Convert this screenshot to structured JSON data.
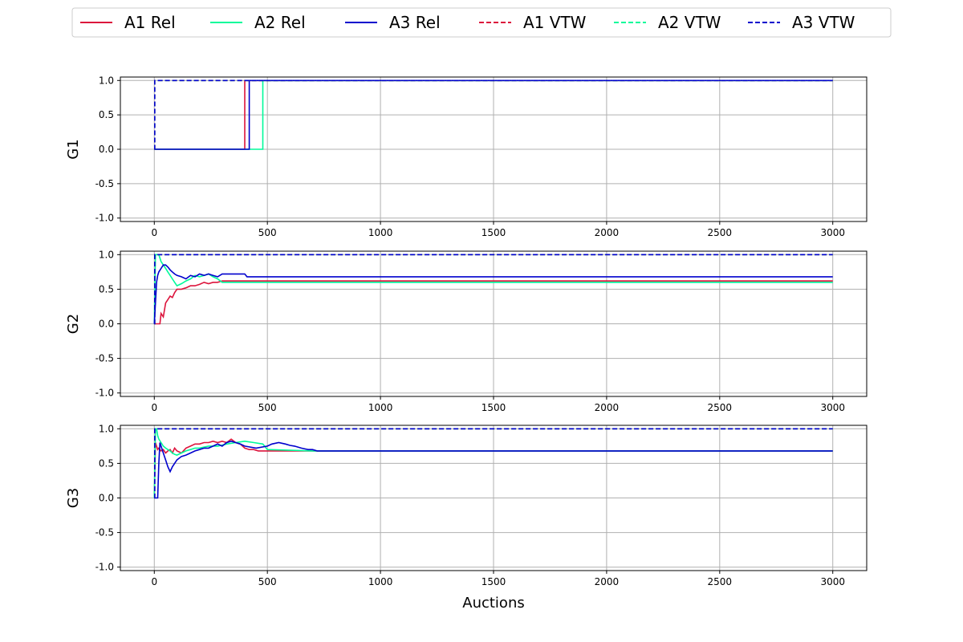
{
  "chart_data": {
    "type": "line",
    "xlabel": "Auctions",
    "xlim": [
      -150,
      3150
    ],
    "ylim": [
      -1.05,
      1.05
    ],
    "xticks": [
      0,
      500,
      1000,
      1500,
      2000,
      2500,
      3000
    ],
    "yticks": [
      -1.0,
      -0.5,
      0.0,
      0.5,
      1.0
    ],
    "xtick_labels": [
      "0",
      "500",
      "1000",
      "1500",
      "2000",
      "2500",
      "3000"
    ],
    "ytick_labels": [
      "-1.0",
      "-0.5",
      "0.0",
      "0.5",
      "1.0"
    ],
    "grid": true,
    "legend_placement": "top-center",
    "legend": [
      {
        "name": "A1 Rel",
        "color": "#dc143c",
        "dash": "solid"
      },
      {
        "name": "A2 Rel",
        "color": "#00fa9a",
        "dash": "solid"
      },
      {
        "name": "A3 Rel",
        "color": "#0000cd",
        "dash": "solid"
      },
      {
        "name": "A1 VTW",
        "color": "#dc143c",
        "dash": "dashed"
      },
      {
        "name": "A2 VTW",
        "color": "#00fa9a",
        "dash": "dashed"
      },
      {
        "name": "A3 VTW",
        "color": "#0000cd",
        "dash": "dashed"
      }
    ],
    "panels": [
      {
        "ylabel": "G1",
        "series": [
          {
            "name": "A1 Rel",
            "color": "#dc143c",
            "dash": "solid",
            "x": [
              0,
              400,
              400,
              3000
            ],
            "y": [
              0,
              0,
              1,
              1
            ]
          },
          {
            "name": "A2 Rel",
            "color": "#00fa9a",
            "dash": "solid",
            "x": [
              0,
              480,
              480,
              3000
            ],
            "y": [
              0,
              0,
              1,
              1
            ]
          },
          {
            "name": "A3 Rel",
            "color": "#0000cd",
            "dash": "solid",
            "x": [
              0,
              420,
              420,
              3000
            ],
            "y": [
              0,
              0,
              1,
              1
            ]
          },
          {
            "name": "A1 VTW",
            "color": "#dc143c",
            "dash": "dashed",
            "x": [
              0,
              2,
              2,
              3000
            ],
            "y": [
              0,
              0,
              1,
              1
            ]
          },
          {
            "name": "A2 VTW",
            "color": "#00fa9a",
            "dash": "dashed",
            "x": [
              0,
              2,
              2,
              3000
            ],
            "y": [
              0,
              0,
              1,
              1
            ]
          },
          {
            "name": "A3 VTW",
            "color": "#0000cd",
            "dash": "dashed",
            "x": [
              0,
              2,
              2,
              3000
            ],
            "y": [
              0,
              0,
              1,
              1
            ]
          }
        ]
      },
      {
        "ylabel": "G2",
        "series": [
          {
            "name": "A1 Rel",
            "color": "#dc143c",
            "dash": "solid",
            "x": [
              0,
              10,
              25,
              30,
              40,
              50,
              60,
              70,
              80,
              90,
              100,
              120,
              140,
              160,
              180,
              200,
              220,
              240,
              260,
              280,
              300,
              3000
            ],
            "y": [
              0,
              0,
              0,
              0.15,
              0.1,
              0.3,
              0.35,
              0.4,
              0.38,
              0.45,
              0.5,
              0.5,
              0.52,
              0.55,
              0.55,
              0.57,
              0.6,
              0.58,
              0.6,
              0.6,
              0.62,
              0.62
            ]
          },
          {
            "name": "A2 Rel",
            "color": "#00fa9a",
            "dash": "solid",
            "x": [
              0,
              5,
              10,
              20,
              30,
              40,
              50,
              60,
              70,
              80,
              90,
              100,
              120,
              140,
              160,
              180,
              200,
              220,
              240,
              260,
              280,
              300,
              3000
            ],
            "y": [
              0,
              1,
              1,
              1,
              0.9,
              0.85,
              0.8,
              0.75,
              0.7,
              0.65,
              0.6,
              0.55,
              0.58,
              0.62,
              0.65,
              0.7,
              0.68,
              0.7,
              0.72,
              0.68,
              0.65,
              0.6,
              0.6
            ]
          },
          {
            "name": "A3 Rel",
            "color": "#0000cd",
            "dash": "solid",
            "x": [
              0,
              5,
              10,
              15,
              20,
              30,
              40,
              50,
              60,
              70,
              80,
              90,
              100,
              120,
              140,
              160,
              180,
              200,
              220,
              240,
              260,
              280,
              300,
              350,
              400,
              410,
              3000
            ],
            "y": [
              0,
              0.3,
              0.6,
              0.7,
              0.75,
              0.8,
              0.85,
              0.85,
              0.82,
              0.78,
              0.75,
              0.72,
              0.7,
              0.68,
              0.65,
              0.7,
              0.68,
              0.72,
              0.7,
              0.72,
              0.7,
              0.68,
              0.72,
              0.72,
              0.72,
              0.68,
              0.68
            ]
          },
          {
            "name": "A1 VTW",
            "color": "#dc143c",
            "dash": "dashed",
            "x": [
              0,
              2,
              2,
              3000
            ],
            "y": [
              0,
              0,
              1,
              1
            ]
          },
          {
            "name": "A2 VTW",
            "color": "#00fa9a",
            "dash": "dashed",
            "x": [
              0,
              2,
              2,
              3000
            ],
            "y": [
              0,
              0,
              1,
              1
            ]
          },
          {
            "name": "A3 VTW",
            "color": "#0000cd",
            "dash": "dashed",
            "x": [
              0,
              2,
              2,
              3000
            ],
            "y": [
              0,
              0,
              1,
              1
            ]
          }
        ]
      },
      {
        "ylabel": "G3",
        "series": [
          {
            "name": "A1 Rel",
            "color": "#dc143c",
            "dash": "solid",
            "x": [
              0,
              5,
              10,
              15,
              20,
              30,
              40,
              50,
              60,
              70,
              80,
              90,
              100,
              120,
              140,
              160,
              180,
              200,
              220,
              240,
              260,
              280,
              300,
              320,
              340,
              360,
              380,
              400,
              420,
              440,
              460,
              3000
            ],
            "y": [
              0,
              0.8,
              0.75,
              0.7,
              0.72,
              0.68,
              0.7,
              0.65,
              0.68,
              0.7,
              0.65,
              0.72,
              0.68,
              0.65,
              0.72,
              0.75,
              0.78,
              0.78,
              0.8,
              0.8,
              0.82,
              0.8,
              0.82,
              0.8,
              0.85,
              0.8,
              0.78,
              0.72,
              0.7,
              0.7,
              0.68,
              0.68
            ]
          },
          {
            "name": "A2 Rel",
            "color": "#00fa9a",
            "dash": "solid",
            "x": [
              0,
              5,
              10,
              15,
              20,
              30,
              40,
              50,
              60,
              70,
              80,
              90,
              100,
              120,
              140,
              160,
              180,
              200,
              240,
              280,
              320,
              360,
              400,
              440,
              480,
              500,
              700,
              3000
            ],
            "y": [
              0,
              1,
              1,
              0.9,
              0.85,
              0.8,
              0.75,
              0.72,
              0.7,
              0.68,
              0.65,
              0.63,
              0.62,
              0.65,
              0.68,
              0.7,
              0.72,
              0.72,
              0.75,
              0.75,
              0.78,
              0.8,
              0.82,
              0.8,
              0.78,
              0.7,
              0.68,
              0.68
            ]
          },
          {
            "name": "A3 Rel",
            "color": "#0000cd",
            "dash": "solid",
            "x": [
              0,
              5,
              10,
              15,
              20,
              25,
              30,
              40,
              50,
              60,
              70,
              80,
              90,
              100,
              120,
              140,
              160,
              180,
              200,
              220,
              240,
              260,
              280,
              300,
              320,
              340,
              360,
              380,
              400,
              450,
              500,
              520,
              550,
              580,
              600,
              620,
              650,
              680,
              700,
              720,
              3000
            ],
            "y": [
              0,
              0,
              0,
              0,
              0.5,
              0.8,
              0.75,
              0.65,
              0.55,
              0.45,
              0.38,
              0.45,
              0.5,
              0.55,
              0.6,
              0.62,
              0.65,
              0.68,
              0.7,
              0.72,
              0.72,
              0.75,
              0.78,
              0.75,
              0.8,
              0.82,
              0.8,
              0.78,
              0.75,
              0.72,
              0.75,
              0.78,
              0.8,
              0.78,
              0.76,
              0.75,
              0.72,
              0.7,
              0.7,
              0.68,
              0.68
            ]
          },
          {
            "name": "A1 VTW",
            "color": "#dc143c",
            "dash": "dashed",
            "x": [
              0,
              2,
              2,
              3000
            ],
            "y": [
              0,
              0,
              1,
              1
            ]
          },
          {
            "name": "A2 VTW",
            "color": "#00fa9a",
            "dash": "dashed",
            "x": [
              0,
              2,
              2,
              3000
            ],
            "y": [
              0,
              0,
              1,
              1
            ]
          },
          {
            "name": "A3 VTW",
            "color": "#0000cd",
            "dash": "dashed",
            "x": [
              0,
              2,
              2,
              3000
            ],
            "y": [
              0,
              0,
              1,
              1
            ]
          }
        ]
      }
    ]
  }
}
